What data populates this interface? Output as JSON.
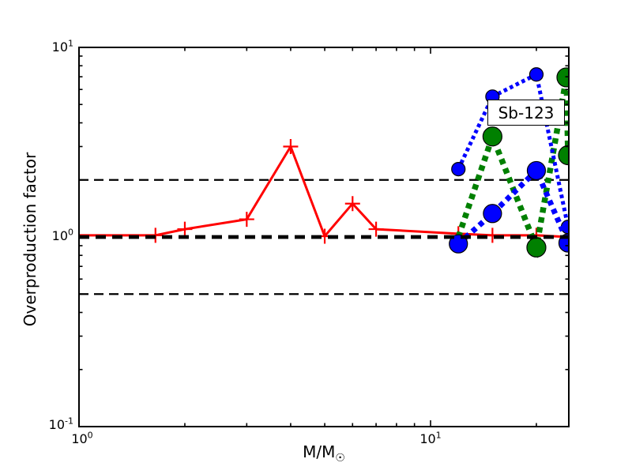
{
  "figure": {
    "background": "#ffffff"
  },
  "chart_data": {
    "type": "line",
    "title": "",
    "xlabel": {
      "main": "M/M",
      "sub": "☉"
    },
    "ylabel": "Overproduction factor",
    "x_scale": "log",
    "y_scale": "log",
    "xlim": [
      1.0,
      24.7
    ],
    "ylim": [
      0.1,
      10.0
    ],
    "grid": false,
    "legend": "none",
    "x_tick_labels": [
      {
        "base": "10",
        "exp": "0"
      },
      {
        "base": "10",
        "exp": "1"
      }
    ],
    "y_tick_labels": [
      {
        "base": "10",
        "exp": "1"
      },
      {
        "base": "10",
        "exp": "0"
      },
      {
        "base": "10",
        "exp": "-1"
      }
    ],
    "x_major_ticks": [
      1,
      10
    ],
    "x_minor_ticks": [
      2,
      3,
      4,
      5,
      6,
      7,
      8,
      9,
      20
    ],
    "y_major_ticks": [
      0.1,
      1,
      10
    ],
    "y_minor_ticks": [
      0.2,
      0.3,
      0.4,
      0.5,
      0.6,
      0.7,
      0.8,
      0.9,
      2,
      3,
      4,
      5,
      6,
      7,
      8,
      9
    ],
    "annotation": {
      "text": "Sb-123",
      "x": 18.5,
      "y": 4.5
    },
    "reference_lines": [
      {
        "y": 2.0,
        "color": "#000000",
        "style": "dashed",
        "width": 2.2,
        "dash": [
          12,
          7
        ],
        "layer": "below"
      },
      {
        "y": 0.5,
        "color": "#000000",
        "style": "dashed",
        "width": 2.2,
        "dash": [
          12,
          7
        ],
        "layer": "below"
      },
      {
        "y": 1.0,
        "color": "#000000",
        "style": "dashed",
        "width": 4.8,
        "dash": [
          13,
          8
        ],
        "layer": "above"
      }
    ],
    "series": [
      {
        "name": "red-solid-plus",
        "color": "#ff0000",
        "line_style": "solid",
        "line_width": 3,
        "marker": "plus",
        "marker_size": 9.5,
        "x": [
          1.0,
          1.65,
          2.0,
          3.0,
          4.0,
          5.0,
          6.0,
          7.0,
          12.0,
          15.0,
          20.0,
          24.7
        ],
        "y": [
          1.02,
          1.02,
          1.1,
          1.24,
          3.0,
          1.01,
          1.5,
          1.1,
          1.04,
          1.02,
          1.02,
          1.0
        ],
        "marker_x": [
          1.65,
          2.0,
          3.0,
          4.0,
          5.0,
          6.0,
          7.0,
          12.0,
          15.0,
          20.0
        ],
        "marker_y": [
          1.02,
          1.1,
          1.24,
          3.0,
          1.01,
          1.5,
          1.1,
          1.04,
          1.02,
          1.02
        ]
      },
      {
        "name": "green-dotted-circles",
        "color": "#008000",
        "line_style": "dotted",
        "line_width": 7.5,
        "marker": "circle",
        "marker_size": 12,
        "x": [
          12.0,
          15.0,
          20.0,
          24.35,
          24.6
        ],
        "y": [
          1.0,
          3.39,
          0.88,
          6.95,
          2.7
        ],
        "marker_x": [
          15.0,
          20.0,
          24.35,
          24.6
        ],
        "marker_y": [
          3.39,
          0.88,
          6.95,
          2.7
        ]
      },
      {
        "name": "blue-upper-dotted-circles",
        "color": "#0000ff",
        "line_style": "dotted",
        "line_width": 5,
        "marker": "circle",
        "marker_size": 8.5,
        "x": [
          12.0,
          15.0,
          20.0,
          24.6
        ],
        "y": [
          2.28,
          5.5,
          7.2,
          1.13
        ],
        "marker_x": [
          12.0,
          15.0,
          20.0,
          24.6
        ],
        "marker_y": [
          2.28,
          5.5,
          7.2,
          1.13
        ]
      },
      {
        "name": "blue-lower-dotted-circles",
        "color": "#0000ff",
        "line_style": "dotted",
        "line_width": 7,
        "marker": "circle",
        "marker_size": 11.5,
        "x": [
          12.0,
          15.0,
          20.0,
          24.6
        ],
        "y": [
          0.92,
          1.33,
          2.24,
          0.93
        ],
        "marker_x": [
          12.0,
          15.0,
          20.0,
          24.6
        ],
        "marker_y": [
          0.92,
          1.33,
          2.24,
          0.93
        ]
      }
    ]
  }
}
